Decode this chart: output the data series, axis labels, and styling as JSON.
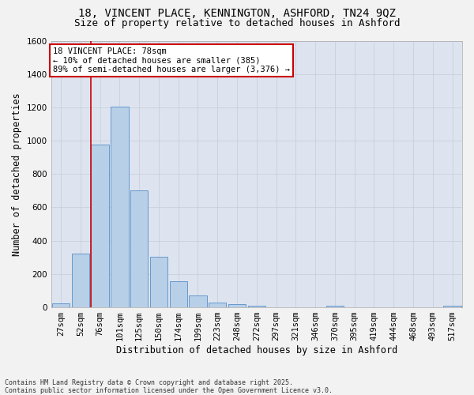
{
  "title_line1": "18, VINCENT PLACE, KENNINGTON, ASHFORD, TN24 9QZ",
  "title_line2": "Size of property relative to detached houses in Ashford",
  "xlabel": "Distribution of detached houses by size in Ashford",
  "ylabel": "Number of detached properties",
  "footnote": "Contains HM Land Registry data © Crown copyright and database right 2025.\nContains public sector information licensed under the Open Government Licence v3.0.",
  "categories": [
    "27sqm",
    "52sqm",
    "76sqm",
    "101sqm",
    "125sqm",
    "150sqm",
    "174sqm",
    "199sqm",
    "223sqm",
    "248sqm",
    "272sqm",
    "297sqm",
    "321sqm",
    "346sqm",
    "370sqm",
    "395sqm",
    "419sqm",
    "444sqm",
    "468sqm",
    "493sqm",
    "517sqm"
  ],
  "values": [
    25,
    325,
    975,
    1205,
    700,
    305,
    158,
    70,
    28,
    18,
    10,
    0,
    0,
    0,
    8,
    0,
    0,
    0,
    0,
    0,
    10
  ],
  "bar_color": "#b8cfe8",
  "bar_edge_color": "#6699cc",
  "property_line_bin_index": 2,
  "annotation_line1": "18 VINCENT PLACE: 78sqm",
  "annotation_line2": "← 10% of detached houses are smaller (385)",
  "annotation_line3": "89% of semi-detached houses are larger (3,376) →",
  "annotation_box_color": "#ffffff",
  "annotation_box_edge_color": "#cc0000",
  "red_line_color": "#cc0000",
  "ylim": [
    0,
    1600
  ],
  "yticks": [
    0,
    200,
    400,
    600,
    800,
    1000,
    1200,
    1400,
    1600
  ],
  "grid_color": "#c8d0dc",
  "bg_color": "#dde4f0",
  "fig_bg_color": "#f2f2f2",
  "title_fontsize": 10,
  "subtitle_fontsize": 9,
  "axis_label_fontsize": 8.5,
  "tick_fontsize": 7.5,
  "annotation_fontsize": 7.5,
  "footnote_fontsize": 6
}
